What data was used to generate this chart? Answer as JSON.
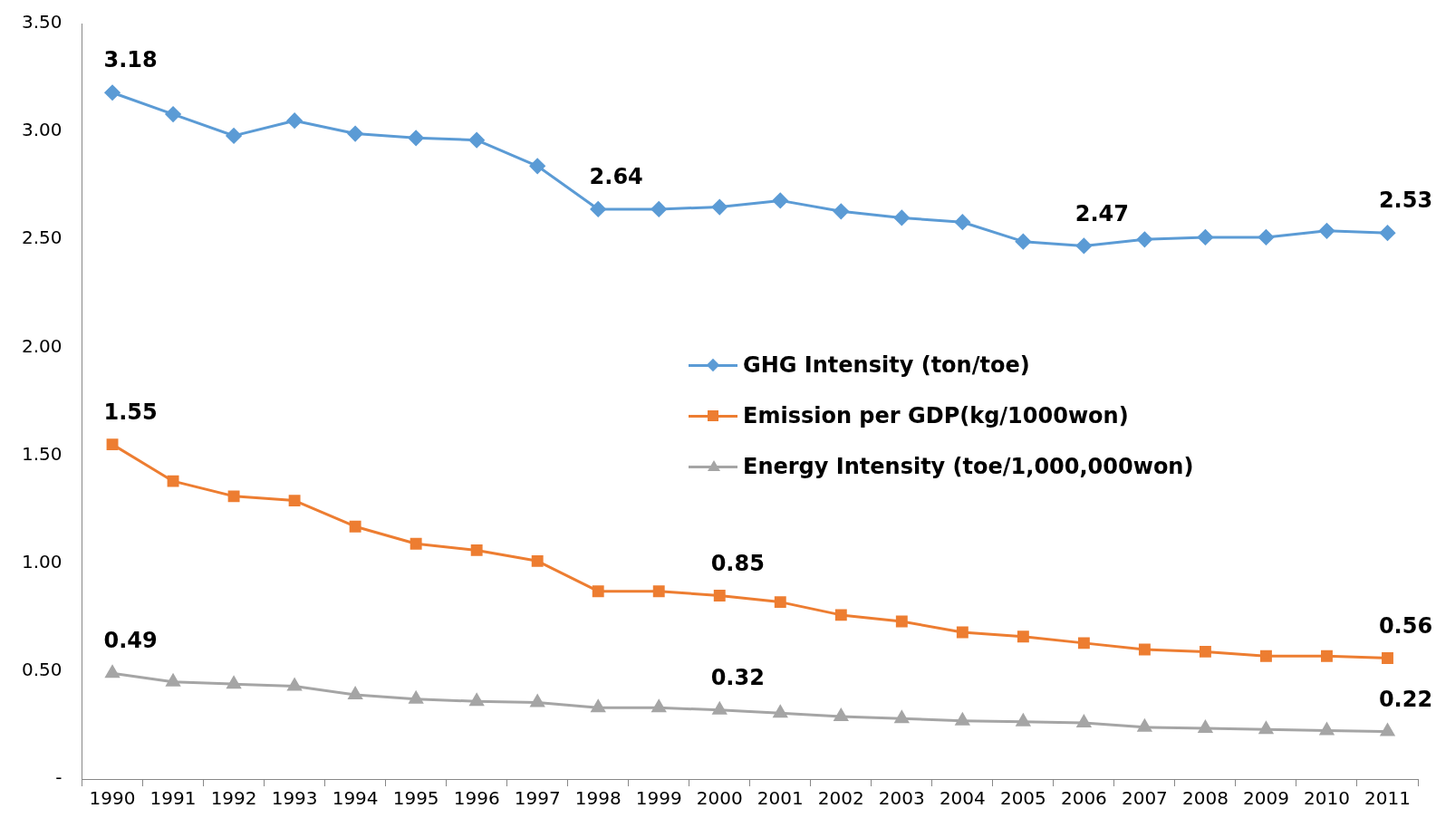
{
  "chart_data": {
    "type": "line",
    "categories": [
      "1990",
      "1991",
      "1992",
      "1993",
      "1994",
      "1995",
      "1996",
      "1997",
      "1998",
      "1999",
      "2000",
      "2001",
      "2002",
      "2003",
      "2004",
      "2005",
      "2006",
      "2007",
      "2008",
      "2009",
      "2010",
      "2011"
    ],
    "series": [
      {
        "name": "GHG Intensity (ton/toe)",
        "color": "#5b9bd5",
        "marker": "diamond",
        "values": [
          3.18,
          3.08,
          2.98,
          3.05,
          2.99,
          2.97,
          2.96,
          2.84,
          2.64,
          2.64,
          2.65,
          2.68,
          2.63,
          2.6,
          2.58,
          2.49,
          2.47,
          2.5,
          2.51,
          2.51,
          2.54,
          2.53
        ],
        "value_labels": [
          "3.18",
          null,
          null,
          null,
          null,
          null,
          null,
          null,
          "2.64",
          null,
          null,
          null,
          null,
          null,
          null,
          null,
          "2.47",
          null,
          null,
          null,
          null,
          "2.53"
        ]
      },
      {
        "name": "Emission per GDP(kg/1000won)",
        "color": "#ed7d31",
        "marker": "square",
        "values": [
          1.55,
          1.38,
          1.31,
          1.29,
          1.17,
          1.09,
          1.06,
          1.01,
          0.87,
          0.87,
          0.85,
          0.82,
          0.76,
          0.73,
          0.68,
          0.66,
          0.63,
          0.6,
          0.59,
          0.57,
          0.57,
          0.56
        ],
        "value_labels": [
          "1.55",
          null,
          null,
          null,
          null,
          null,
          null,
          null,
          null,
          null,
          "0.85",
          null,
          null,
          null,
          null,
          null,
          null,
          null,
          null,
          null,
          null,
          "0.56"
        ]
      },
      {
        "name": "Energy Intensity (toe/1,000,000won)",
        "color": "#a5a5a5",
        "marker": "triangle",
        "values": [
          0.49,
          0.45,
          0.44,
          0.43,
          0.39,
          0.37,
          0.36,
          0.355,
          0.33,
          0.33,
          0.32,
          0.305,
          0.29,
          0.28,
          0.27,
          0.265,
          0.26,
          0.24,
          0.235,
          0.23,
          0.225,
          0.22
        ],
        "value_labels": [
          "0.49",
          null,
          null,
          null,
          null,
          null,
          null,
          null,
          null,
          null,
          "0.32",
          null,
          null,
          null,
          null,
          null,
          null,
          null,
          null,
          null,
          null,
          "0.22"
        ]
      }
    ],
    "ylim": [
      0,
      3.5
    ],
    "yticks": [
      {
        "value": 0,
        "label": "-"
      },
      {
        "value": 0.5,
        "label": "0.50"
      },
      {
        "value": 1,
        "label": "1.00"
      },
      {
        "value": 1.5,
        "label": "1.50"
      },
      {
        "value": 2,
        "label": "2.00"
      },
      {
        "value": 2.5,
        "label": "2.50"
      },
      {
        "value": 3,
        "label": "3.00"
      },
      {
        "value": 3.5,
        "label": "3.50"
      }
    ],
    "grid": false,
    "legend": "right"
  }
}
